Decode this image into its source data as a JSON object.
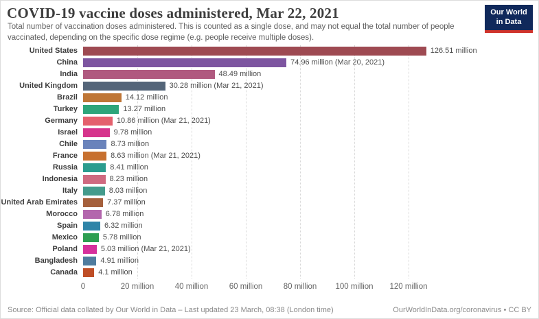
{
  "header": {
    "title": "COVID-19 vaccine doses administered, Mar 22, 2021",
    "subtitle": "Total number of vaccination doses administered. This is counted as a single dose, and may not equal the total number of people vaccinated, depending on the specific dose regime (e.g. people receive multiple doses)."
  },
  "logo": {
    "line1": "Our World",
    "line2": "in Data",
    "bg_color": "#10295b",
    "accent_color": "#d0342c"
  },
  "chart_data": {
    "type": "bar",
    "orientation": "horizontal",
    "title": "COVID-19 vaccine doses administered, Mar 22, 2021",
    "unit": "million doses",
    "xlim": [
      0,
      130
    ],
    "grid": "dotted-vertical",
    "x_ticks": [
      0,
      20,
      40,
      60,
      80,
      100,
      120
    ],
    "x_tick_labels": [
      "0",
      "20 million",
      "40 million",
      "60 million",
      "80 million",
      "100 million",
      "120 million"
    ],
    "series": [
      {
        "country": "United States",
        "value": 126.51,
        "label": "126.51 million",
        "color": "#9e4a52"
      },
      {
        "country": "China",
        "value": 74.96,
        "label": "74.96 million (Mar 20, 2021)",
        "color": "#7d55a0"
      },
      {
        "country": "India",
        "value": 48.49,
        "label": "48.49 million",
        "color": "#b0597f"
      },
      {
        "country": "United Kingdom",
        "value": 30.28,
        "label": "30.28 million (Mar 21, 2021)",
        "color": "#546579"
      },
      {
        "country": "Brazil",
        "value": 14.12,
        "label": "14.12 million",
        "color": "#bf7636"
      },
      {
        "country": "Turkey",
        "value": 13.27,
        "label": "13.27 million",
        "color": "#2da57a"
      },
      {
        "country": "Germany",
        "value": 10.86,
        "label": "10.86 million (Mar 21, 2021)",
        "color": "#e4606d"
      },
      {
        "country": "Israel",
        "value": 9.78,
        "label": "9.78 million",
        "color": "#d6348c"
      },
      {
        "country": "Chile",
        "value": 8.73,
        "label": "8.73 million",
        "color": "#6a83bb"
      },
      {
        "country": "France",
        "value": 8.63,
        "label": "8.63 million (Mar 21, 2021)",
        "color": "#c7702f"
      },
      {
        "country": "Russia",
        "value": 8.41,
        "label": "8.41 million",
        "color": "#2b9c8e"
      },
      {
        "country": "Indonesia",
        "value": 8.23,
        "label": "8.23 million",
        "color": "#cf6a80"
      },
      {
        "country": "Italy",
        "value": 8.03,
        "label": "8.03 million",
        "color": "#449b8c"
      },
      {
        "country": "United Arab Emirates",
        "value": 7.37,
        "label": "7.37 million",
        "color": "#a5603c"
      },
      {
        "country": "Morocco",
        "value": 6.78,
        "label": "6.78 million",
        "color": "#b366ad"
      },
      {
        "country": "Spain",
        "value": 6.32,
        "label": "6.32 million",
        "color": "#2e84a8"
      },
      {
        "country": "Mexico",
        "value": 5.78,
        "label": "5.78 million",
        "color": "#2d9e51"
      },
      {
        "country": "Poland",
        "value": 5.03,
        "label": "5.03 million (Mar 21, 2021)",
        "color": "#d6309c"
      },
      {
        "country": "Bangladesh",
        "value": 4.91,
        "label": "4.91 million",
        "color": "#4f7c9e"
      },
      {
        "country": "Canada",
        "value": 4.1,
        "label": "4.1 million",
        "color": "#bf4e26"
      }
    ]
  },
  "footer": {
    "source": "Source: Official data collated by Our World in Data – Last updated 23 March, 08:38 (London time)",
    "license": "OurWorldInData.org/coronavirus • CC BY"
  }
}
